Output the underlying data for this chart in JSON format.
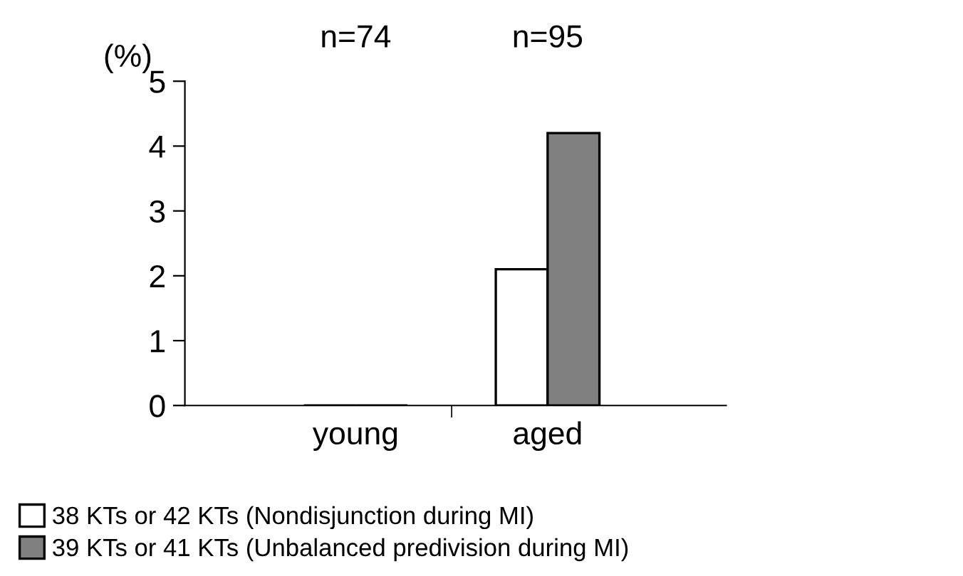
{
  "chart_data": {
    "type": "bar",
    "ylabel": "(%)",
    "categories": [
      "young",
      "aged"
    ],
    "series": [
      {
        "name": "38 KTs or 42 KTs (Nondisjunction during MI)",
        "color": "#ffffff",
        "values": [
          0,
          2.1
        ]
      },
      {
        "name": "39 KTs or 41 KTs (Unbalanced predivision during MI)",
        "color": "#808080",
        "values": [
          0,
          4.2
        ]
      }
    ],
    "ylim": [
      0,
      5
    ],
    "yticks": [
      0,
      1,
      2,
      3,
      4,
      5
    ],
    "grid": false,
    "legend": "bottom",
    "annotations": [
      "n=74",
      "n=95"
    ]
  }
}
